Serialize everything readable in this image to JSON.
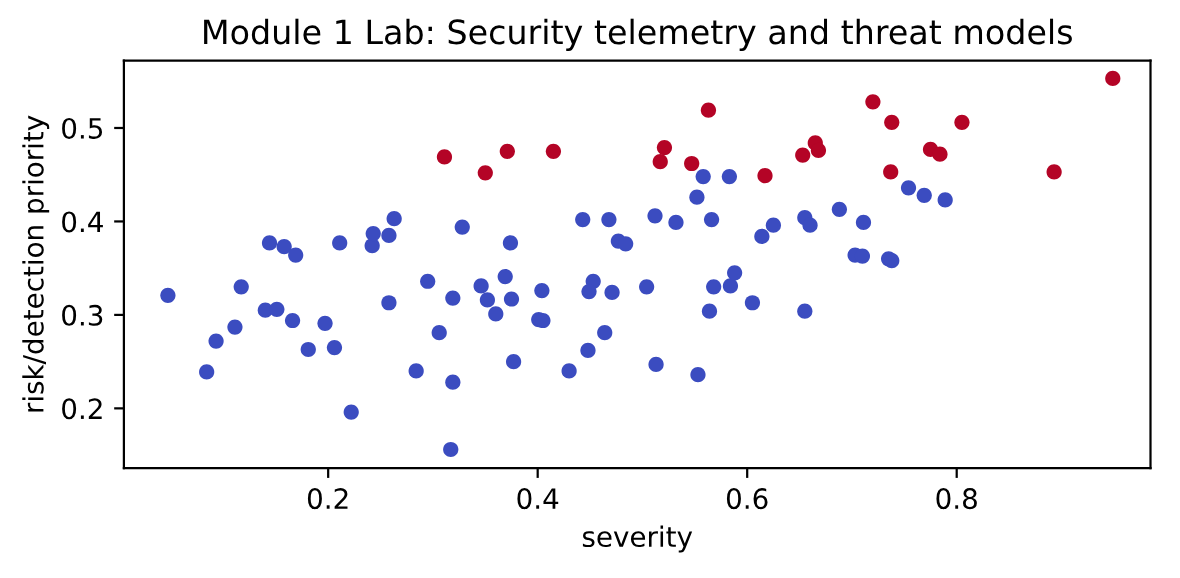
{
  "chart_data": {
    "type": "scatter",
    "title": "Module 1 Lab: Security telemetry and threat models",
    "xlabel": "severity",
    "ylabel": "risk/detection priority",
    "xlim": [
      0.005,
      0.985
    ],
    "ylim": [
      0.136,
      0.572
    ],
    "xticks": [
      0.2,
      0.4,
      0.6,
      0.8
    ],
    "yticks": [
      0.2,
      0.3,
      0.4,
      0.5
    ],
    "grid": false,
    "legend": false,
    "marker": "circle",
    "series": [
      {
        "color": "#3b4cc0",
        "x": [
          0.047,
          0.084,
          0.093,
          0.111,
          0.117,
          0.144,
          0.158,
          0.169,
          0.14,
          0.151,
          0.166,
          0.181,
          0.197,
          0.206,
          0.222,
          0.211,
          0.242,
          0.243,
          0.258,
          0.263,
          0.258,
          0.284,
          0.295,
          0.306,
          0.319,
          0.319,
          0.317,
          0.328,
          0.346,
          0.352,
          0.36,
          0.369,
          0.375,
          0.374,
          0.377,
          0.404,
          0.401,
          0.405,
          0.43,
          0.448,
          0.464,
          0.443,
          0.468,
          0.453,
          0.449,
          0.471,
          0.477,
          0.484,
          0.504,
          0.512,
          0.513,
          0.532,
          0.553,
          0.552,
          0.558,
          0.583,
          0.566,
          0.564,
          0.568,
          0.584,
          0.588,
          0.605,
          0.614,
          0.625,
          0.655,
          0.655,
          0.66,
          0.688,
          0.711,
          0.703,
          0.71,
          0.735,
          0.738,
          0.754,
          0.769,
          0.789
        ],
        "values": [
          0.321,
          0.239,
          0.272,
          0.287,
          0.33,
          0.377,
          0.373,
          0.364,
          0.305,
          0.306,
          0.294,
          0.263,
          0.291,
          0.265,
          0.196,
          0.377,
          0.374,
          0.387,
          0.385,
          0.403,
          0.313,
          0.24,
          0.336,
          0.281,
          0.318,
          0.228,
          0.156,
          0.394,
          0.331,
          0.316,
          0.301,
          0.341,
          0.317,
          0.377,
          0.25,
          0.326,
          0.295,
          0.294,
          0.24,
          0.262,
          0.281,
          0.402,
          0.402,
          0.336,
          0.325,
          0.324,
          0.379,
          0.376,
          0.33,
          0.406,
          0.247,
          0.399,
          0.236,
          0.426,
          0.448,
          0.448,
          0.402,
          0.304,
          0.33,
          0.331,
          0.345,
          0.313,
          0.384,
          0.396,
          0.304,
          0.404,
          0.396,
          0.413,
          0.399,
          0.364,
          0.363,
          0.36,
          0.358,
          0.436,
          0.428,
          0.423
        ]
      },
      {
        "color": "#b40426",
        "x": [
          0.311,
          0.35,
          0.371,
          0.415,
          0.517,
          0.521,
          0.563,
          0.547,
          0.617,
          0.653,
          0.665,
          0.668,
          0.72,
          0.738,
          0.805,
          0.775,
          0.784,
          0.737,
          0.893,
          0.949
        ],
        "values": [
          0.469,
          0.452,
          0.475,
          0.475,
          0.464,
          0.479,
          0.519,
          0.462,
          0.449,
          0.471,
          0.484,
          0.476,
          0.528,
          0.506,
          0.506,
          0.477,
          0.472,
          0.453,
          0.453,
          0.553
        ]
      }
    ]
  }
}
